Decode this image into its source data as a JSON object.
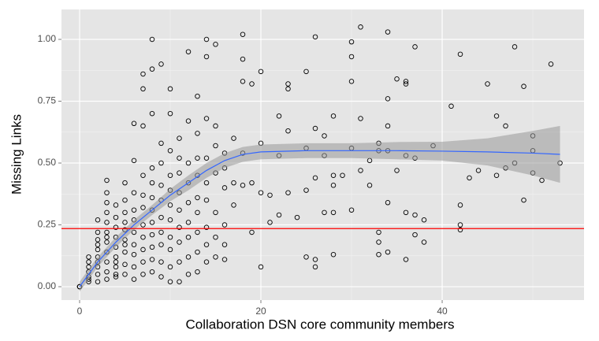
{
  "chart_data": {
    "type": "scatter",
    "x_label": "Collaboration DSN core community members",
    "y_label": "Missing Links",
    "xlim": [
      -2,
      55.65
    ],
    "ylim": [
      -0.054,
      1.121
    ],
    "xticks": [
      0,
      20,
      40
    ],
    "yticks": [
      {
        "value": 0,
        "label": "0.00"
      },
      {
        "value": 0.25,
        "label": "0.25"
      },
      {
        "value": 0.5,
        "label": "0.50"
      },
      {
        "value": 0.75,
        "label": "0.75"
      },
      {
        "value": 1,
        "label": "1.00"
      }
    ],
    "x_minor_grid": [
      10,
      30,
      50
    ],
    "y_minor_grid": [
      0.125,
      0.375,
      0.625,
      0.875
    ],
    "grid": true,
    "point_color": "#000000",
    "x": [
      0,
      0,
      0,
      1,
      1,
      1,
      1,
      1,
      1,
      1,
      2,
      2,
      2,
      2,
      2,
      2,
      2,
      2,
      2,
      2,
      3,
      3,
      3,
      3,
      3,
      3,
      3,
      3,
      3,
      3,
      3,
      3,
      4,
      4,
      4,
      4,
      4,
      4,
      4,
      4,
      4,
      4,
      5,
      5,
      5,
      5,
      5,
      5,
      5,
      5,
      5,
      5,
      6,
      6,
      6,
      6,
      6,
      6,
      6,
      6,
      6,
      6,
      7,
      7,
      7,
      7,
      7,
      7,
      7,
      7,
      7,
      7,
      7,
      8,
      8,
      8,
      8,
      8,
      8,
      8,
      8,
      8,
      8,
      8,
      8,
      9,
      9,
      9,
      9,
      9,
      9,
      9,
      9,
      9,
      9,
      10,
      10,
      10,
      10,
      10,
      10,
      10,
      10,
      10,
      10,
      10,
      11,
      11,
      11,
      11,
      11,
      11,
      11,
      11,
      11,
      12,
      12,
      12,
      12,
      12,
      12,
      12,
      12,
      12,
      13,
      13,
      13,
      13,
      13,
      13,
      13,
      13,
      13,
      14,
      14,
      14,
      14,
      14,
      14,
      14,
      14,
      14,
      15,
      15,
      15,
      15,
      15,
      15,
      15,
      16,
      16,
      16,
      16,
      16,
      16,
      17,
      17,
      17,
      18,
      18,
      18,
      18,
      18,
      19,
      19,
      19,
      20,
      20,
      20,
      20,
      21,
      21,
      22,
      22,
      22,
      23,
      23,
      23,
      23,
      24,
      25,
      25,
      25,
      25,
      26,
      26,
      26,
      26,
      26,
      27,
      27,
      27,
      28,
      28,
      28,
      28,
      28,
      29,
      30,
      30,
      30,
      30,
      30,
      31,
      31,
      31,
      32,
      32,
      33,
      33,
      33,
      33,
      33,
      34,
      34,
      34,
      34,
      34,
      34,
      35,
      35,
      36,
      36,
      36,
      36,
      36,
      37,
      37,
      37,
      37,
      38,
      38,
      39,
      41,
      42,
      42,
      42,
      42,
      43,
      44,
      45,
      46,
      46,
      47,
      47,
      48,
      48,
      49,
      49,
      50,
      50,
      50,
      51,
      52,
      53
    ],
    "values": [
      0,
      0,
      0,
      0.02,
      0.04,
      0.06,
      0.08,
      0.1,
      0.12,
      0.03,
      0.02,
      0.05,
      0.08,
      0.12,
      0.15,
      0.19,
      0.22,
      0.27,
      0.1,
      0.17,
      0.03,
      0.06,
      0.1,
      0.14,
      0.18,
      0.22,
      0.26,
      0.3,
      0.34,
      0.38,
      0.43,
      0.2,
      0.04,
      0.08,
      0.12,
      0.16,
      0.2,
      0.24,
      0.28,
      0.33,
      0.05,
      0.1,
      0.05,
      0.09,
      0.14,
      0.19,
      0.23,
      0.26,
      0.3,
      0.35,
      0.42,
      0.17,
      0.03,
      0.08,
      0.13,
      0.17,
      0.22,
      0.27,
      0.31,
      0.38,
      0.51,
      0.66,
      0.05,
      0.1,
      0.15,
      0.2,
      0.25,
      0.32,
      0.37,
      0.45,
      0.65,
      0.86,
      0.8,
      0.06,
      0.11,
      0.16,
      0.21,
      0.26,
      0.31,
      0.36,
      0.42,
      0.48,
      0.7,
      0.88,
      1.0,
      0.04,
      0.1,
      0.17,
      0.22,
      0.28,
      0.35,
      0.41,
      0.5,
      0.58,
      0.9,
      0.02,
      0.08,
      0.15,
      0.2,
      0.27,
      0.33,
      0.39,
      0.45,
      0.55,
      0.7,
      0.8,
      0.02,
      0.1,
      0.18,
      0.24,
      0.31,
      0.38,
      0.46,
      0.52,
      0.6,
      0.05,
      0.12,
      0.2,
      0.26,
      0.34,
      0.42,
      0.5,
      0.95,
      0.67,
      0.06,
      0.14,
      0.22,
      0.3,
      0.36,
      0.45,
      0.52,
      0.62,
      0.77,
      0.1,
      0.17,
      0.24,
      0.35,
      0.42,
      0.52,
      0.68,
      1.0,
      0.93,
      0.12,
      0.2,
      0.3,
      0.46,
      0.57,
      0.65,
      0.98,
      0.11,
      0.17,
      0.25,
      0.4,
      0.48,
      0.54,
      0.33,
      0.42,
      0.6,
      0.41,
      0.54,
      0.83,
      0.92,
      1.02,
      0.22,
      0.42,
      0.82,
      0.08,
      0.38,
      0.58,
      0.87,
      0.26,
      0.37,
      0.29,
      0.53,
      0.69,
      0.38,
      0.63,
      0.8,
      0.82,
      0.28,
      0.12,
      0.39,
      0.56,
      0.87,
      0.08,
      0.11,
      0.44,
      0.64,
      1.01,
      0.3,
      0.53,
      0.61,
      0.13,
      0.3,
      0.41,
      0.45,
      0.69,
      0.45,
      0.31,
      0.56,
      0.83,
      0.93,
      0.99,
      0.47,
      0.68,
      1.05,
      0.41,
      0.51,
      0.13,
      0.18,
      0.22,
      0.55,
      0.58,
      0.14,
      0.34,
      0.55,
      0.65,
      0.76,
      1.03,
      0.47,
      0.84,
      0.11,
      0.3,
      0.53,
      0.82,
      0.83,
      0.21,
      0.29,
      0.52,
      0.97,
      0.18,
      0.27,
      0.57,
      0.73,
      0.23,
      0.25,
      0.33,
      0.94,
      0.44,
      0.47,
      0.82,
      0.45,
      0.69,
      0.48,
      0.65,
      0.5,
      0.97,
      0.35,
      0.81,
      0.46,
      0.55,
      0.61,
      0.43,
      0.9,
      0.5
    ],
    "smooth": {
      "color": "#3366ff",
      "band_color": "#999999",
      "x": [
        0,
        2,
        4,
        6,
        8,
        10,
        12,
        14,
        16,
        18,
        20,
        25,
        30,
        35,
        40,
        45,
        50,
        53
      ],
      "values": [
        0.0,
        0.1,
        0.18,
        0.25,
        0.31,
        0.37,
        0.42,
        0.47,
        0.51,
        0.535,
        0.545,
        0.55,
        0.55,
        0.55,
        0.548,
        0.545,
        0.54,
        0.535
      ],
      "lower": [
        -0.02,
        0.08,
        0.16,
        0.23,
        0.29,
        0.345,
        0.39,
        0.44,
        0.48,
        0.505,
        0.515,
        0.52,
        0.52,
        0.515,
        0.51,
        0.49,
        0.45,
        0.42
      ],
      "upper": [
        0.02,
        0.12,
        0.2,
        0.27,
        0.33,
        0.395,
        0.45,
        0.5,
        0.54,
        0.565,
        0.575,
        0.58,
        0.58,
        0.585,
        0.586,
        0.6,
        0.63,
        0.65
      ]
    },
    "hline": {
      "value": 0.235,
      "color": "#ff0000"
    }
  }
}
